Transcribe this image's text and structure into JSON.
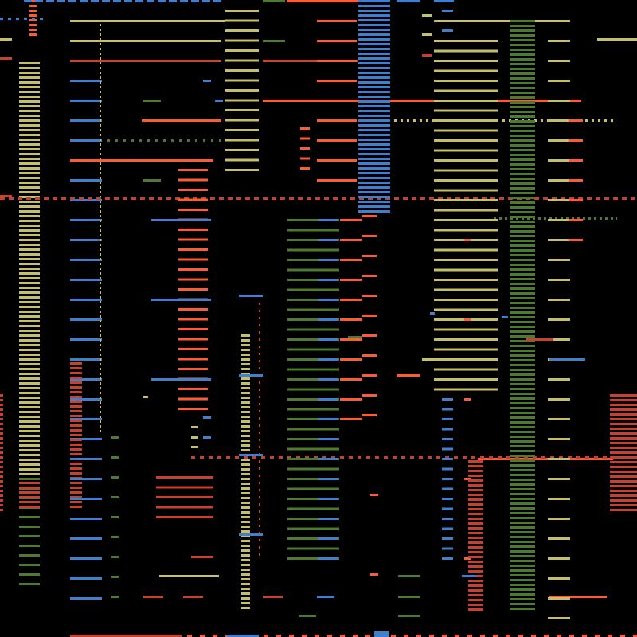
{
  "palette": {
    "background": "#000000",
    "orange": "#ff5a36",
    "red": "#c8412f",
    "blue": "#3f7fd0",
    "olive": "#c4bf68",
    "green": "#4e7a2f"
  }
}
